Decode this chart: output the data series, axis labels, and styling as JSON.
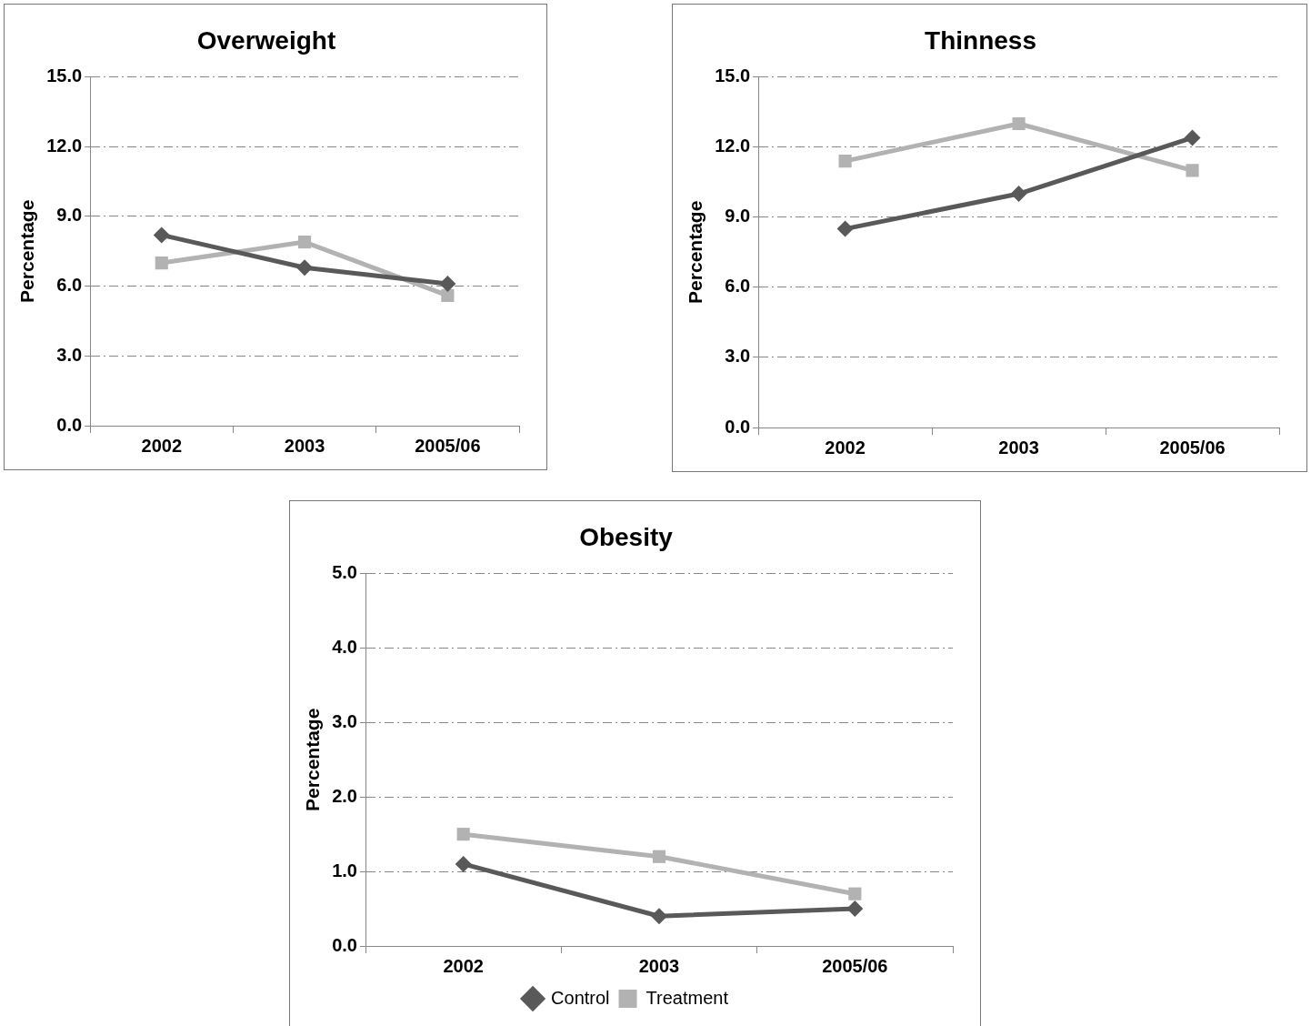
{
  "chart_data": [
    {
      "type": "line",
      "title": "Overweight",
      "ylabel": "Percentage",
      "categories": [
        "2002",
        "2003",
        "2005/06"
      ],
      "ylim": [
        0,
        15
      ],
      "yticks": [
        {
          "value": 0,
          "label": "0.0"
        },
        {
          "value": 3,
          "label": "3.0"
        },
        {
          "value": 6,
          "label": "6.0"
        },
        {
          "value": 9,
          "label": "9.0"
        },
        {
          "value": 12,
          "label": "12.0"
        },
        {
          "value": 15,
          "label": "15.0"
        }
      ],
      "grid": "y",
      "legend": false,
      "series": [
        {
          "color": "#595959",
          "marker": "diamond",
          "values": [
            8.2,
            6.8,
            6.1
          ]
        },
        {
          "color": "#b2b2b2",
          "marker": "square",
          "values": [
            7.0,
            7.9,
            5.6
          ]
        }
      ]
    },
    {
      "type": "line",
      "title": "Thinness",
      "ylabel": "Percentage",
      "categories": [
        "2002",
        "2003",
        "2005/06"
      ],
      "ylim": [
        0,
        15
      ],
      "yticks": [
        {
          "value": 0,
          "label": "0.0"
        },
        {
          "value": 3,
          "label": "3.0"
        },
        {
          "value": 6,
          "label": "6.0"
        },
        {
          "value": 9,
          "label": "9.0"
        },
        {
          "value": 12,
          "label": "12.0"
        },
        {
          "value": 15,
          "label": "15.0"
        }
      ],
      "grid": "y",
      "legend": false,
      "series": [
        {
          "color": "#595959",
          "marker": "diamond",
          "values": [
            8.5,
            10.0,
            12.4
          ]
        },
        {
          "color": "#b2b2b2",
          "marker": "square",
          "values": [
            11.4,
            13.0,
            11.0
          ]
        }
      ]
    },
    {
      "type": "line",
      "title": "Obesity",
      "ylabel": "Percentage",
      "categories": [
        "2002",
        "2003",
        "2005/06"
      ],
      "ylim": [
        0,
        5
      ],
      "yticks": [
        {
          "value": 0,
          "label": "0.0"
        },
        {
          "value": 1,
          "label": "1.0"
        },
        {
          "value": 2,
          "label": "2.0"
        },
        {
          "value": 3,
          "label": "3.0"
        },
        {
          "value": 4,
          "label": "4.0"
        },
        {
          "value": 5,
          "label": "5.0"
        }
      ],
      "grid": "y",
      "legend": "bottom",
      "series": [
        {
          "name": "Control",
          "color": "#595959",
          "marker": "diamond",
          "values": [
            1.1,
            0.4,
            0.5
          ]
        },
        {
          "name": "Treatment",
          "color": "#b2b2b2",
          "marker": "square",
          "values": [
            1.5,
            1.2,
            0.7
          ]
        }
      ]
    }
  ]
}
